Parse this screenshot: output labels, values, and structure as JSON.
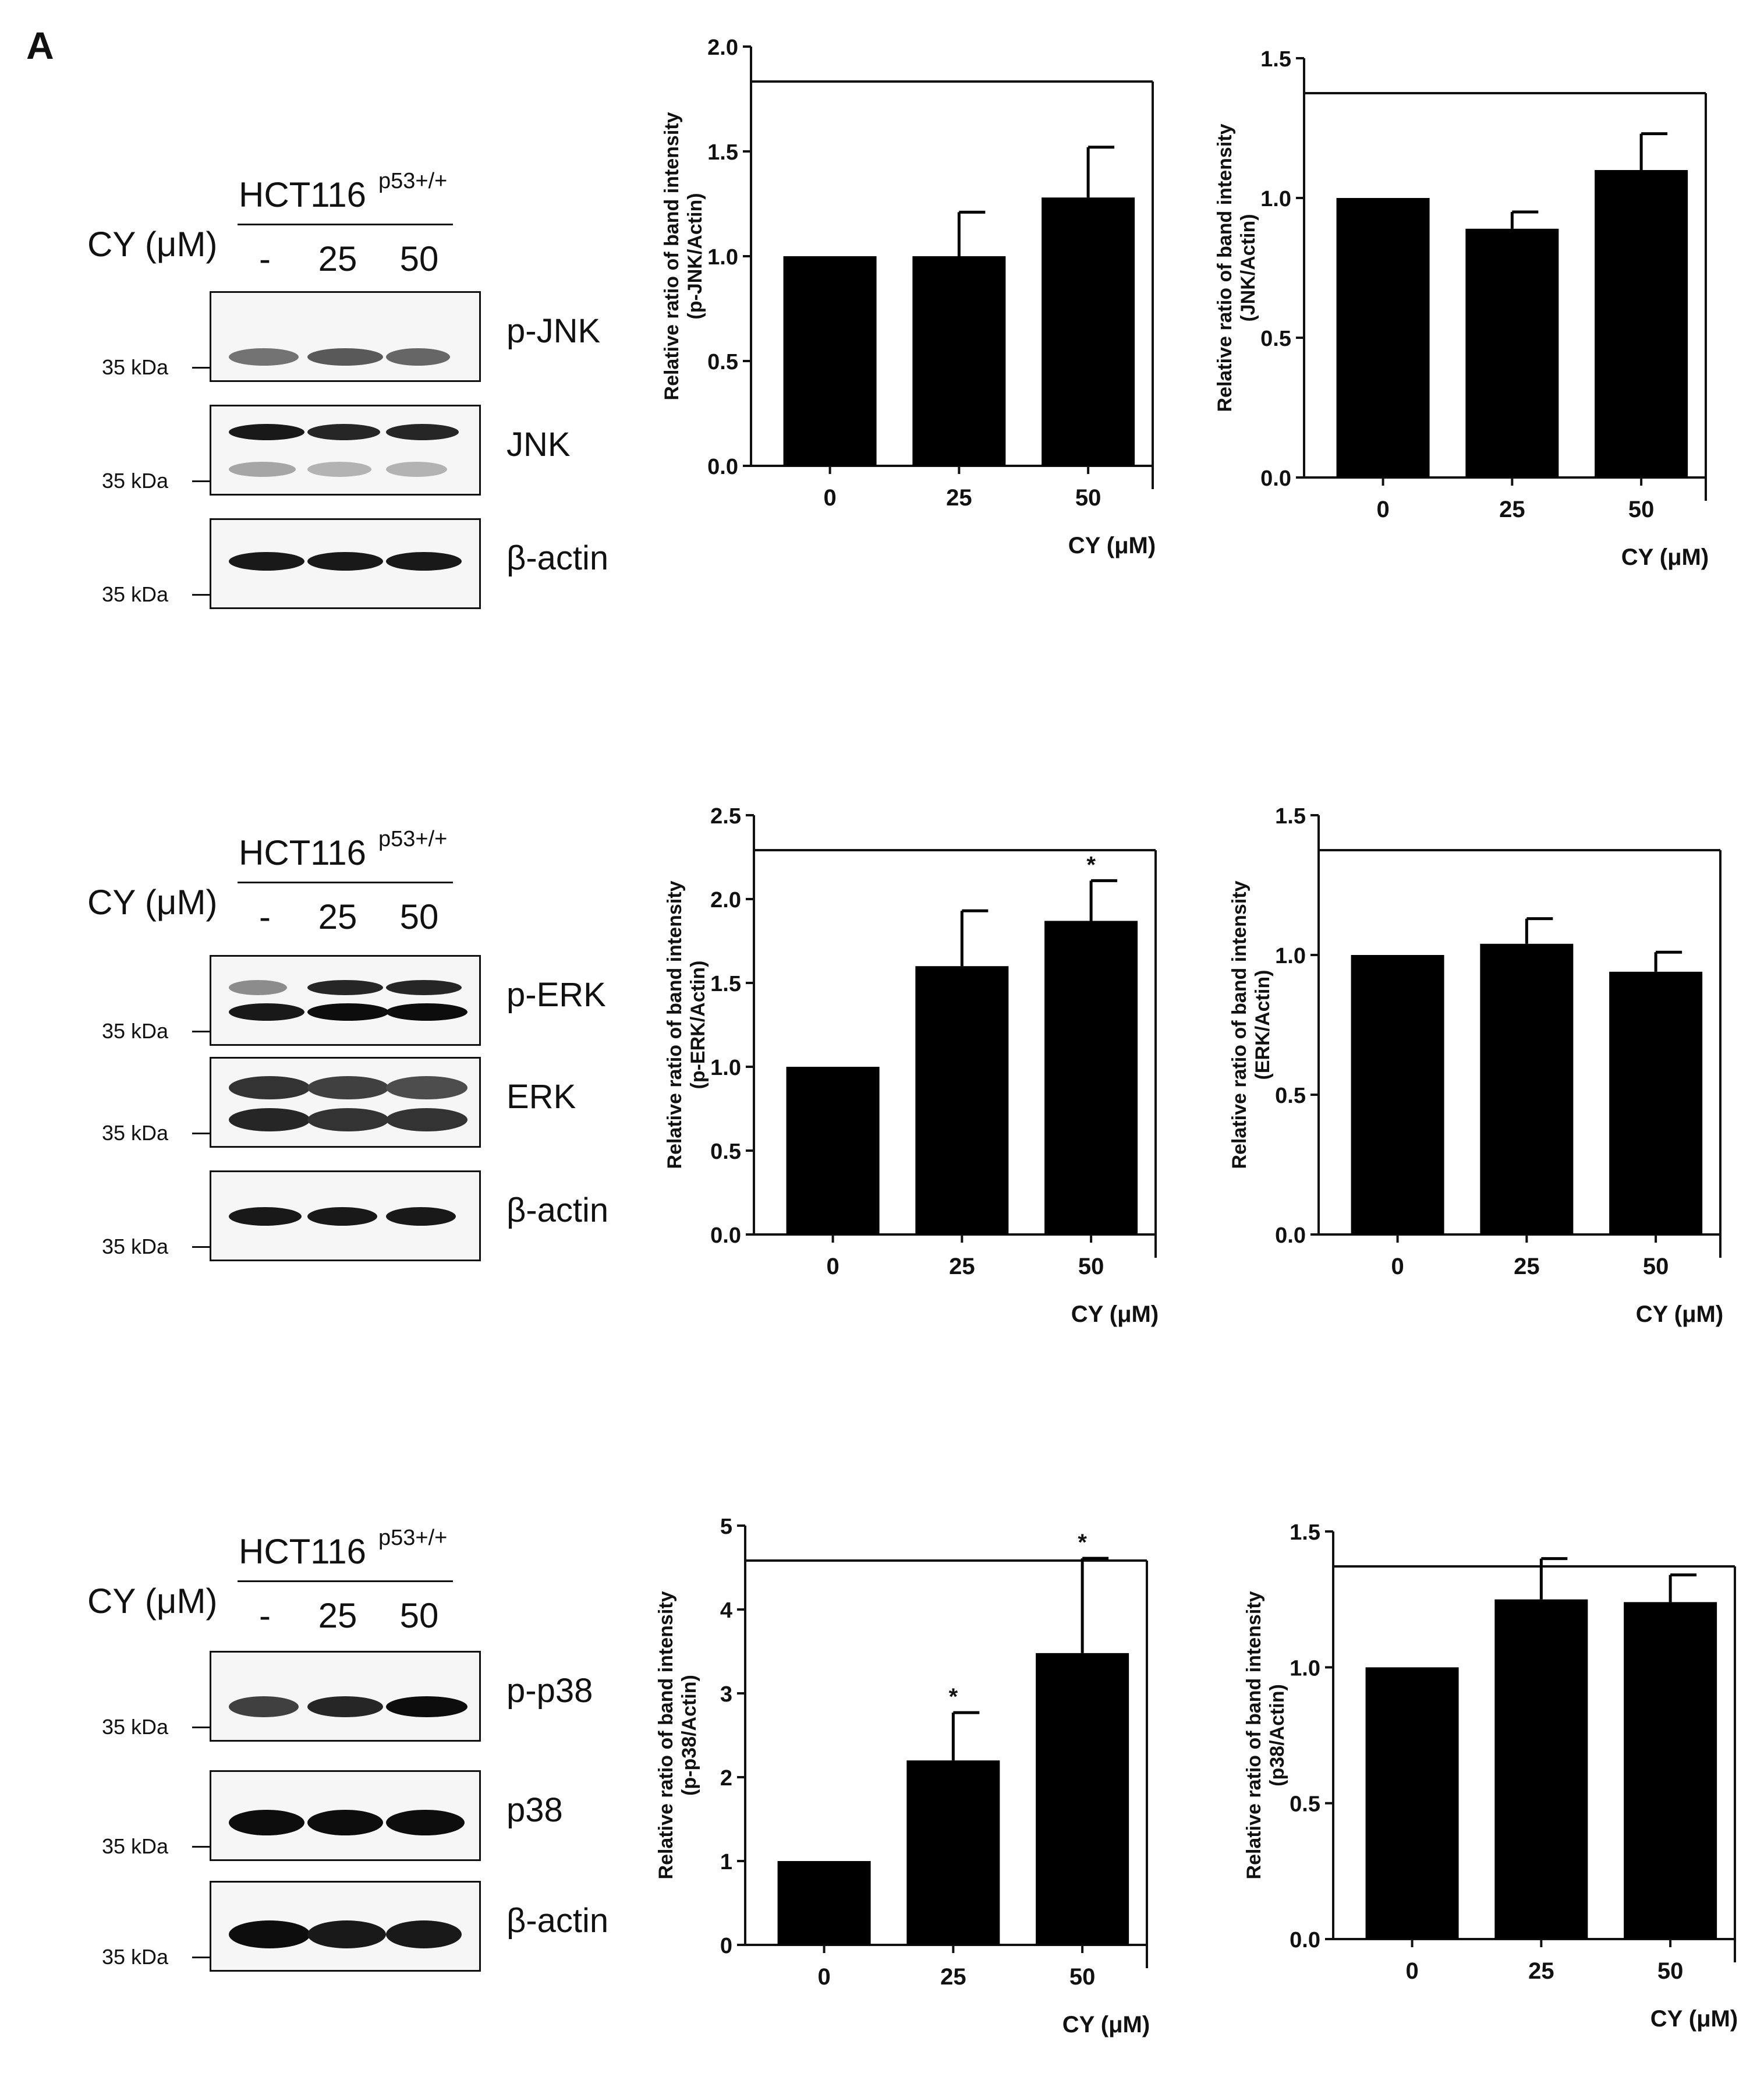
{
  "panel_label": "A",
  "blots": [
    {
      "cell_line": "HCT116",
      "genotype": "p53+/+",
      "treatment_label": "CY (μM)",
      "lanes": [
        "-",
        "25",
        "50"
      ],
      "rows": [
        {
          "protein": "p-JNK",
          "marker": "35 kDa"
        },
        {
          "protein": "JNK",
          "marker": "35 kDa"
        },
        {
          "protein": "β-actin",
          "marker": "35 kDa"
        }
      ]
    },
    {
      "cell_line": "HCT116",
      "genotype": "p53+/+",
      "treatment_label": "CY (μM)",
      "lanes": [
        "-",
        "25",
        "50"
      ],
      "rows": [
        {
          "protein": "p-ERK",
          "marker": "35 kDa"
        },
        {
          "protein": "ERK",
          "marker": "35 kDa"
        },
        {
          "protein": "β-actin",
          "marker": "35 kDa"
        }
      ]
    },
    {
      "cell_line": "HCT116",
      "genotype": "p53+/+",
      "treatment_label": "CY (μM)",
      "lanes": [
        "-",
        "25",
        "50"
      ],
      "rows": [
        {
          "protein": "p-p38",
          "marker": "35 kDa"
        },
        {
          "protein": "p38",
          "marker": "35 kDa"
        },
        {
          "protein": "β-actin",
          "marker": "35 kDa"
        }
      ]
    }
  ],
  "chart_data": [
    {
      "type": "bar",
      "ylabel_line1": "Relative ratio of band intensity",
      "ylabel_line2": "(p-JNK/Actin)",
      "xlabel": "CY (μM)",
      "categories": [
        "0",
        "25",
        "50"
      ],
      "values": [
        1.0,
        1.0,
        1.28
      ],
      "errors": [
        0,
        0.21,
        0.24
      ],
      "significance": [
        "",
        "",
        ""
      ],
      "ylim": [
        0,
        2.0
      ],
      "yticks": [
        "0.0",
        "0.5",
        "1.0",
        "1.5",
        "2.0"
      ]
    },
    {
      "type": "bar",
      "ylabel_line1": "Relative ratio of band intensity",
      "ylabel_line2": "(JNK/Actin)",
      "xlabel": "CY (μM)",
      "categories": [
        "0",
        "25",
        "50"
      ],
      "values": [
        1.0,
        0.89,
        1.1
      ],
      "errors": [
        0,
        0.06,
        0.13
      ],
      "significance": [
        "",
        "",
        ""
      ],
      "ylim": [
        0,
        1.5
      ],
      "yticks": [
        "0.0",
        "0.5",
        "1.0",
        "1.5"
      ]
    },
    {
      "type": "bar",
      "ylabel_line1": "Relative ratio of band intensity",
      "ylabel_line2": "(p-ERK/Actin)",
      "xlabel": "CY (μM)",
      "categories": [
        "0",
        "25",
        "50"
      ],
      "values": [
        1.0,
        1.6,
        1.87
      ],
      "errors": [
        0,
        0.33,
        0.24
      ],
      "significance": [
        "",
        "",
        "*"
      ],
      "ylim": [
        0,
        2.5
      ],
      "yticks": [
        "0.0",
        "0.5",
        "1.0",
        "1.5",
        "2.0",
        "2.5"
      ]
    },
    {
      "type": "bar",
      "ylabel_line1": "Relative ratio of band intensity",
      "ylabel_line2": "(ERK/Actin)",
      "xlabel": "CY (μM)",
      "categories": [
        "0",
        "25",
        "50"
      ],
      "values": [
        1.0,
        1.04,
        0.94
      ],
      "errors": [
        0,
        0.09,
        0.07
      ],
      "significance": [
        "",
        "",
        ""
      ],
      "ylim": [
        0,
        1.5
      ],
      "yticks": [
        "0.0",
        "0.5",
        "1.0",
        "1.5"
      ]
    },
    {
      "type": "bar",
      "ylabel_line1": "Relative ratio of band intensity",
      "ylabel_line2": "(p-p38/Actin)",
      "xlabel": "CY (μM)",
      "categories": [
        "0",
        "25",
        "50"
      ],
      "values": [
        1.0,
        2.2,
        3.48
      ],
      "errors": [
        0,
        0.57,
        1.13
      ],
      "significance": [
        "",
        "*",
        "*"
      ],
      "ylim": [
        0,
        5
      ],
      "yticks": [
        "0",
        "1",
        "2",
        "3",
        "4",
        "5"
      ]
    },
    {
      "type": "bar",
      "ylabel_line1": "Relative ratio of band intensity",
      "ylabel_line2": "(p38/Actin)",
      "xlabel": "CY (μM)",
      "categories": [
        "0",
        "25",
        "50"
      ],
      "values": [
        1.0,
        1.25,
        1.24
      ],
      "errors": [
        0,
        0.15,
        0.1
      ],
      "significance": [
        "",
        "",
        ""
      ],
      "ylim": [
        0,
        1.5
      ],
      "yticks": [
        "0.0",
        "0.5",
        "1.0",
        "1.5"
      ]
    }
  ]
}
